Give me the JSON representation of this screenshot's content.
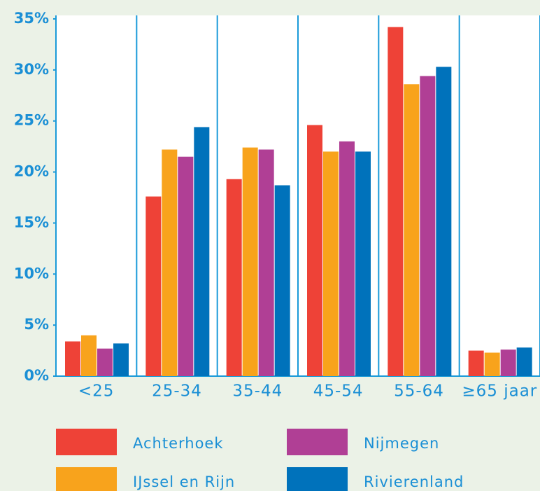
{
  "chart_data": {
    "type": "bar",
    "categories": [
      "<25",
      "25-34",
      "35-44",
      "45-54",
      "55-64",
      "≥65 jaar"
    ],
    "series": [
      {
        "name": "Achterhoek",
        "color": "#ee4237",
        "values": [
          3.4,
          17.6,
          19.3,
          24.6,
          34.2,
          2.5
        ]
      },
      {
        "name": "IJssel en Rijn",
        "color": "#f8a31c",
        "values": [
          4.0,
          22.2,
          22.4,
          22.0,
          28.6,
          2.3
        ]
      },
      {
        "name": "Nijmegen",
        "color": "#b03f95",
        "values": [
          2.7,
          21.5,
          22.2,
          23.0,
          29.4,
          2.6
        ]
      },
      {
        "name": "Rivierenland",
        "color": "#0072bb",
        "values": [
          3.2,
          24.4,
          18.7,
          22.0,
          30.3,
          2.8
        ]
      }
    ],
    "ylim": [
      0,
      35
    ],
    "yticks": [
      {
        "value": 0,
        "label": "0%"
      },
      {
        "value": 5,
        "label": "5%"
      },
      {
        "value": 10,
        "label": "10%"
      },
      {
        "value": 15,
        "label": "15%"
      },
      {
        "value": 20,
        "label": "20%"
      },
      {
        "value": 25,
        "label": "25%"
      },
      {
        "value": 30,
        "label": "30%"
      },
      {
        "value": 35,
        "label": "35%"
      }
    ]
  }
}
